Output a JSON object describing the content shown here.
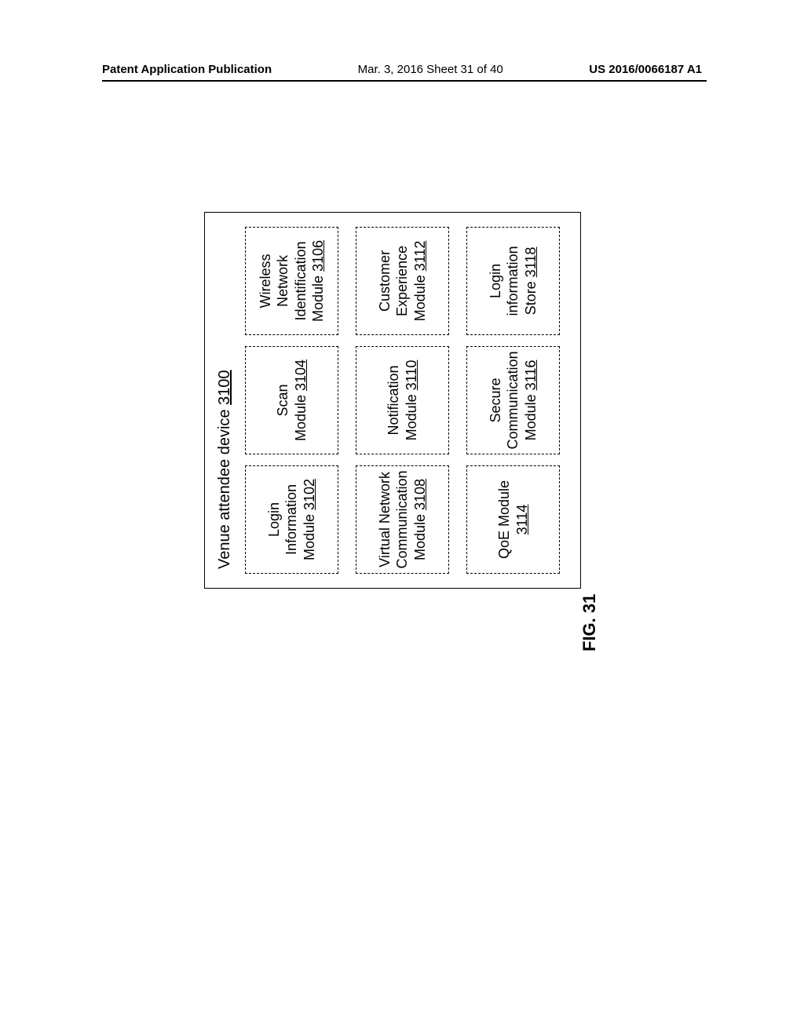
{
  "header": {
    "left": "Patent Application Publication",
    "center": "Mar. 3, 2016  Sheet 31 of 40",
    "right": "US 2016/0066187 A1"
  },
  "figure_label": "FIG. 31",
  "diagram": {
    "title_prefix": "Venue attendee device ",
    "title_ref": "3100",
    "modules": [
      {
        "lines": [
          "Login Information",
          "Module "
        ],
        "ref": "3102"
      },
      {
        "lines": [
          "Scan",
          "Module "
        ],
        "ref": "3104"
      },
      {
        "lines": [
          "Wireless Network",
          "Identification",
          "Module "
        ],
        "ref": "3106"
      },
      {
        "lines": [
          "Virtual Network",
          "Communication",
          "Module "
        ],
        "ref": "3108"
      },
      {
        "lines": [
          "Notification",
          "Module "
        ],
        "ref": "3110"
      },
      {
        "lines": [
          "Customer",
          "Experience",
          "Module "
        ],
        "ref": "3112"
      },
      {
        "lines": [
          "QoE Module"
        ],
        "ref": "3114"
      },
      {
        "lines": [
          "Secure",
          "Communication",
          "Module "
        ],
        "ref": "3116"
      },
      {
        "lines": [
          "Login information",
          "Store "
        ],
        "ref": "3118"
      }
    ]
  },
  "style": {
    "page_bg": "#ffffff",
    "border_color": "#000000",
    "font_family": "Arial, Helvetica, sans-serif",
    "header_fontsize": 15,
    "title_fontsize": 20,
    "module_fontsize": 18,
    "figlabel_fontsize": 22,
    "grid_gap_row": 22,
    "grid_gap_col": 14,
    "rotation_deg": -90
  }
}
